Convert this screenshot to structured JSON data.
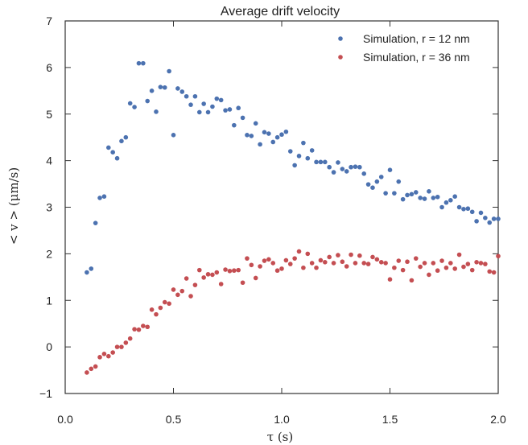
{
  "chart_data": {
    "type": "scatter",
    "title": "Average drift velocity",
    "xlabel": "τ (s)",
    "ylabel": "< v > (μm/s)",
    "xlim": [
      0.0,
      2.0
    ],
    "ylim": [
      -1,
      7
    ],
    "xticks": [
      0.0,
      0.5,
      1.0,
      1.5,
      2.0
    ],
    "xtick_labels": [
      "0.0",
      "0.5",
      "1.0",
      "1.5",
      "2.0"
    ],
    "yticks": [
      -1,
      0,
      1,
      2,
      3,
      4,
      5,
      6,
      7
    ],
    "ytick_labels": [
      "−1",
      "0",
      "1",
      "2",
      "3",
      "4",
      "5",
      "6",
      "7"
    ],
    "grid": false,
    "legend_position": "top-right",
    "series": [
      {
        "name": "Simulation, r = 12 nm",
        "color": "#4c72b0",
        "x": [
          0.1,
          0.12,
          0.14,
          0.16,
          0.18,
          0.2,
          0.22,
          0.24,
          0.26,
          0.28,
          0.3,
          0.32,
          0.34,
          0.36,
          0.38,
          0.4,
          0.42,
          0.44,
          0.46,
          0.48,
          0.5,
          0.52,
          0.54,
          0.56,
          0.58,
          0.6,
          0.62,
          0.64,
          0.66,
          0.68,
          0.7,
          0.72,
          0.74,
          0.76,
          0.78,
          0.8,
          0.82,
          0.84,
          0.86,
          0.88,
          0.9,
          0.92,
          0.94,
          0.96,
          0.98,
          1.0,
          1.02,
          1.04,
          1.06,
          1.08,
          1.1,
          1.12,
          1.14,
          1.16,
          1.18,
          1.2,
          1.22,
          1.24,
          1.26,
          1.28,
          1.3,
          1.32,
          1.34,
          1.36,
          1.38,
          1.4,
          1.42,
          1.44,
          1.46,
          1.48,
          1.5,
          1.52,
          1.54,
          1.56,
          1.58,
          1.6,
          1.62,
          1.64,
          1.66,
          1.68,
          1.7,
          1.72,
          1.74,
          1.76,
          1.78,
          1.8,
          1.82,
          1.84,
          1.86,
          1.88,
          1.9,
          1.92,
          1.94,
          1.96,
          1.98,
          2.0
        ],
        "y": [
          1.6,
          1.68,
          2.66,
          3.2,
          3.23,
          4.28,
          4.18,
          4.05,
          4.42,
          4.5,
          5.23,
          5.15,
          6.09,
          6.09,
          5.28,
          5.5,
          5.05,
          5.58,
          5.57,
          5.92,
          4.55,
          5.55,
          5.48,
          5.38,
          5.2,
          5.38,
          5.04,
          5.22,
          5.04,
          5.16,
          5.33,
          5.3,
          5.08,
          5.1,
          4.76,
          5.13,
          4.92,
          4.55,
          4.53,
          4.8,
          4.35,
          4.61,
          4.58,
          4.4,
          4.5,
          4.56,
          4.62,
          4.2,
          3.9,
          4.1,
          4.38,
          4.05,
          4.22,
          3.97,
          3.97,
          3.97,
          3.86,
          3.75,
          3.96,
          3.82,
          3.77,
          3.86,
          3.87,
          3.86,
          3.72,
          3.49,
          3.42,
          3.55,
          3.65,
          3.3,
          3.8,
          3.3,
          3.55,
          3.17,
          3.26,
          3.28,
          3.32,
          3.2,
          3.18,
          3.34,
          3.2,
          3.22,
          3.0,
          3.1,
          3.15,
          3.23,
          3.0,
          2.96,
          2.97,
          2.9,
          2.7,
          2.88,
          2.77,
          2.67,
          2.75,
          2.75
        ]
      },
      {
        "name": "Simulation, r = 36 nm",
        "color": "#c44e52",
        "x": [
          0.1,
          0.12,
          0.14,
          0.16,
          0.18,
          0.2,
          0.22,
          0.24,
          0.26,
          0.28,
          0.3,
          0.32,
          0.34,
          0.36,
          0.38,
          0.4,
          0.42,
          0.44,
          0.46,
          0.48,
          0.5,
          0.52,
          0.54,
          0.56,
          0.58,
          0.6,
          0.62,
          0.64,
          0.66,
          0.68,
          0.7,
          0.72,
          0.74,
          0.76,
          0.78,
          0.8,
          0.82,
          0.84,
          0.86,
          0.88,
          0.9,
          0.92,
          0.94,
          0.96,
          0.98,
          1.0,
          1.02,
          1.04,
          1.06,
          1.08,
          1.1,
          1.12,
          1.14,
          1.16,
          1.18,
          1.2,
          1.22,
          1.24,
          1.26,
          1.28,
          1.3,
          1.32,
          1.34,
          1.36,
          1.38,
          1.4,
          1.42,
          1.44,
          1.46,
          1.48,
          1.5,
          1.52,
          1.54,
          1.56,
          1.58,
          1.6,
          1.62,
          1.64,
          1.66,
          1.68,
          1.7,
          1.72,
          1.74,
          1.76,
          1.78,
          1.8,
          1.82,
          1.84,
          1.86,
          1.88,
          1.9,
          1.92,
          1.94,
          1.96,
          1.98,
          2.0
        ],
        "y": [
          -0.55,
          -0.47,
          -0.42,
          -0.22,
          -0.15,
          -0.2,
          -0.12,
          0.0,
          0.0,
          0.09,
          0.18,
          0.38,
          0.37,
          0.45,
          0.43,
          0.8,
          0.7,
          0.84,
          0.96,
          0.93,
          1.23,
          1.12,
          1.2,
          1.47,
          1.09,
          1.33,
          1.65,
          1.49,
          1.56,
          1.55,
          1.6,
          1.35,
          1.66,
          1.63,
          1.64,
          1.65,
          1.38,
          1.9,
          1.76,
          1.48,
          1.73,
          1.85,
          1.88,
          1.8,
          1.64,
          1.68,
          1.86,
          1.78,
          1.9,
          2.05,
          1.7,
          2.0,
          1.8,
          1.7,
          1.86,
          1.82,
          1.93,
          1.8,
          1.97,
          1.83,
          1.73,
          1.98,
          1.8,
          1.96,
          1.8,
          1.78,
          1.93,
          1.88,
          1.82,
          1.8,
          1.45,
          1.7,
          1.85,
          1.65,
          1.83,
          1.43,
          1.9,
          1.72,
          1.8,
          1.55,
          1.8,
          1.64,
          1.85,
          1.7,
          1.8,
          1.68,
          1.98,
          1.72,
          1.78,
          1.65,
          1.82,
          1.8,
          1.78,
          1.62,
          1.6,
          1.95
        ]
      }
    ]
  }
}
